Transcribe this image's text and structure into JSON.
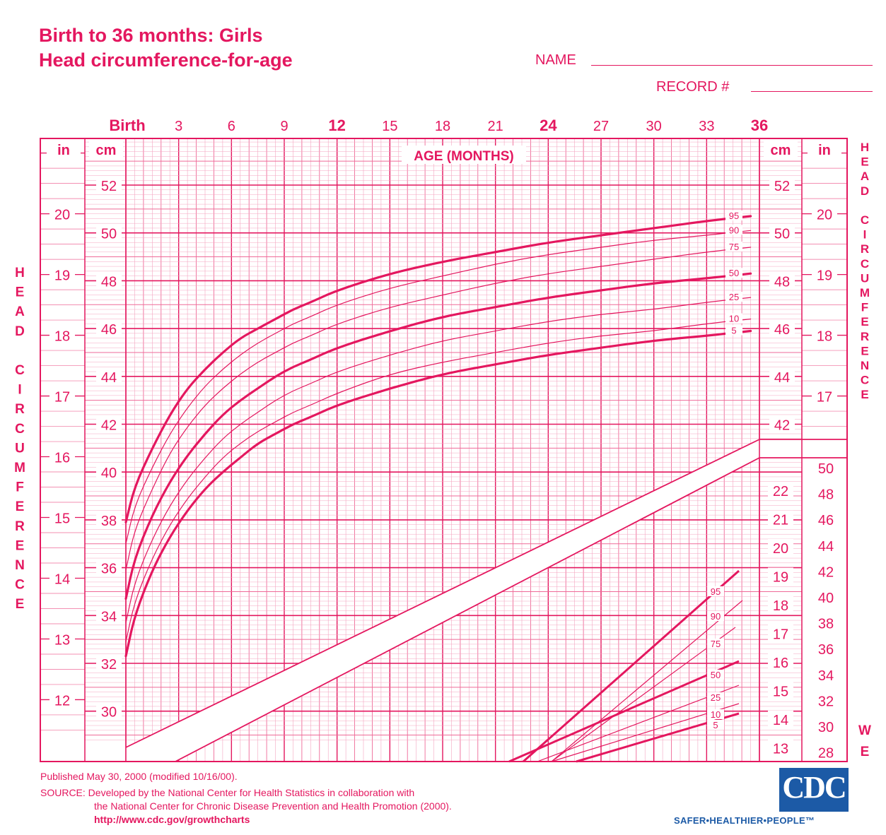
{
  "header": {
    "title_line1": "Birth to 36 months: Girls",
    "title_line2": "Head circumference-for-age",
    "name_label": "NAME",
    "record_label": "RECORD #"
  },
  "footer": {
    "published": "Published May 30, 2000 (modified 10/16/00).",
    "source_line1": "SOURCE: Developed by the National Center for Health Statistics in collaboration with",
    "source_line2": "the National Center for Chronic Disease Prevention and Health Promotion (2000).",
    "url": "http://www.cdc.gov/growthcharts",
    "logo_text": "CDC",
    "tagline": "SAFER•HEALTHIER•PEOPLE™"
  },
  "colors": {
    "ink": "#e4175f",
    "grid": "#ef6a98",
    "grid_light": "#f4a6c1",
    "logo_blue": "#1c5aa6"
  },
  "chart_data": {
    "type": "line",
    "title": "Head circumference-for-age",
    "xlabel": "AGE (MONTHS)",
    "ylabel": "HEAD CIRCUMFERENCE",
    "x_ticks": [
      "Birth",
      "3",
      "6",
      "9",
      "12",
      "15",
      "18",
      "21",
      "24",
      "27",
      "30",
      "33",
      "36"
    ],
    "x_bold_ticks": [
      "Birth",
      "12",
      "24",
      "36"
    ],
    "xlim": [
      0,
      36
    ],
    "y_unit_cm": "cm",
    "y_unit_in": "in",
    "y_ticks_cm": [
      "52",
      "50",
      "48",
      "46",
      "44",
      "42",
      "40",
      "38",
      "36",
      "34",
      "32",
      "30"
    ],
    "y_ticks_in_left": [
      "20",
      "19",
      "18",
      "17",
      "16",
      "15",
      "14",
      "13",
      "12"
    ],
    "y_ticks_in_right": [
      "20",
      "19",
      "18",
      "17"
    ],
    "ylim_cm": [
      28.8,
      54.8
    ],
    "side_label_right": "HEAD CIRCUMFERENCE",
    "weight_label": "WE",
    "weight_ticks_kg": [
      "22",
      "21",
      "20",
      "19",
      "18",
      "17",
      "16",
      "15",
      "14",
      "13"
    ],
    "weight_ticks_lb": [
      "50",
      "48",
      "46",
      "44",
      "42",
      "40",
      "38",
      "36",
      "34",
      "32",
      "30",
      "28"
    ],
    "grid": true,
    "series": [
      {
        "name": "95",
        "x": [
          0,
          0.5,
          1.5,
          2.5,
          3.5,
          4.5,
          5.5,
          6.5,
          7.5,
          8.5,
          9.5,
          10.5,
          12,
          15,
          18,
          21,
          24,
          27,
          30,
          33,
          35.5
        ],
        "values": [
          37.9,
          39.4,
          41.0,
          42.4,
          43.5,
          44.3,
          45.0,
          45.6,
          46.0,
          46.4,
          46.8,
          47.1,
          47.6,
          48.3,
          48.8,
          49.2,
          49.6,
          49.9,
          50.2,
          50.5,
          50.7
        ]
      },
      {
        "name": "90",
        "x": [
          0,
          0.5,
          1.5,
          2.5,
          3.5,
          4.5,
          5.5,
          6.5,
          7.5,
          8.5,
          9.5,
          10.5,
          12,
          15,
          18,
          21,
          24,
          27,
          30,
          33,
          35.5
        ],
        "values": [
          37.0,
          38.6,
          40.2,
          41.6,
          42.7,
          43.6,
          44.3,
          44.9,
          45.4,
          45.8,
          46.2,
          46.5,
          47.0,
          47.7,
          48.2,
          48.7,
          49.1,
          49.4,
          49.7,
          49.9,
          50.1
        ]
      },
      {
        "name": "75",
        "x": [
          0,
          0.5,
          1.5,
          2.5,
          3.5,
          4.5,
          5.5,
          6.5,
          7.5,
          8.5,
          9.5,
          10.5,
          12,
          15,
          18,
          21,
          24,
          27,
          30,
          33,
          35.5
        ],
        "values": [
          35.9,
          37.6,
          39.3,
          40.8,
          41.9,
          42.8,
          43.5,
          44.1,
          44.6,
          45.0,
          45.4,
          45.7,
          46.2,
          46.9,
          47.4,
          47.9,
          48.3,
          48.6,
          48.9,
          49.2,
          49.4
        ]
      },
      {
        "name": "50",
        "x": [
          0,
          0.5,
          1.5,
          2.5,
          3.5,
          4.5,
          5.5,
          6.5,
          7.5,
          8.5,
          9.5,
          10.5,
          12,
          15,
          18,
          21,
          24,
          27,
          30,
          33,
          35.5
        ],
        "values": [
          34.7,
          36.4,
          38.2,
          39.6,
          40.7,
          41.6,
          42.4,
          43.0,
          43.5,
          44.0,
          44.4,
          44.7,
          45.2,
          45.9,
          46.5,
          46.9,
          47.3,
          47.6,
          47.9,
          48.1,
          48.3
        ]
      },
      {
        "name": "25",
        "x": [
          0,
          0.5,
          1.5,
          2.5,
          3.5,
          4.5,
          5.5,
          6.5,
          7.5,
          8.5,
          9.5,
          10.5,
          12,
          15,
          18,
          21,
          24,
          27,
          30,
          33,
          35.5
        ],
        "values": [
          33.7,
          35.4,
          37.2,
          38.6,
          39.7,
          40.6,
          41.4,
          42.0,
          42.5,
          43.0,
          43.4,
          43.7,
          44.2,
          44.9,
          45.5,
          45.9,
          46.3,
          46.6,
          46.8,
          47.1,
          47.3
        ]
      },
      {
        "name": "10",
        "x": [
          0,
          0.5,
          1.5,
          2.5,
          3.5,
          4.5,
          5.5,
          6.5,
          7.5,
          8.5,
          9.5,
          10.5,
          12,
          15,
          18,
          21,
          24,
          27,
          30,
          33,
          35.5
        ],
        "values": [
          32.9,
          34.6,
          36.4,
          37.8,
          38.9,
          39.8,
          40.6,
          41.2,
          41.7,
          42.1,
          42.5,
          42.8,
          43.3,
          44.1,
          44.6,
          45.0,
          45.4,
          45.7,
          45.9,
          46.2,
          46.4
        ]
      },
      {
        "name": "5",
        "x": [
          0,
          0.5,
          1.5,
          2.5,
          3.5,
          4.5,
          5.5,
          6.5,
          7.5,
          8.5,
          9.5,
          10.5,
          12,
          15,
          18,
          21,
          24,
          27,
          30,
          33,
          35.5
        ],
        "values": [
          32.3,
          34.0,
          35.9,
          37.3,
          38.4,
          39.3,
          40.0,
          40.6,
          41.2,
          41.6,
          42.0,
          42.3,
          42.8,
          43.5,
          44.1,
          44.5,
          44.9,
          45.2,
          45.5,
          45.7,
          45.9
        ]
      }
    ],
    "weight_series_labels": [
      "95",
      "90",
      "75",
      "50",
      "25",
      "10",
      "5"
    ]
  }
}
